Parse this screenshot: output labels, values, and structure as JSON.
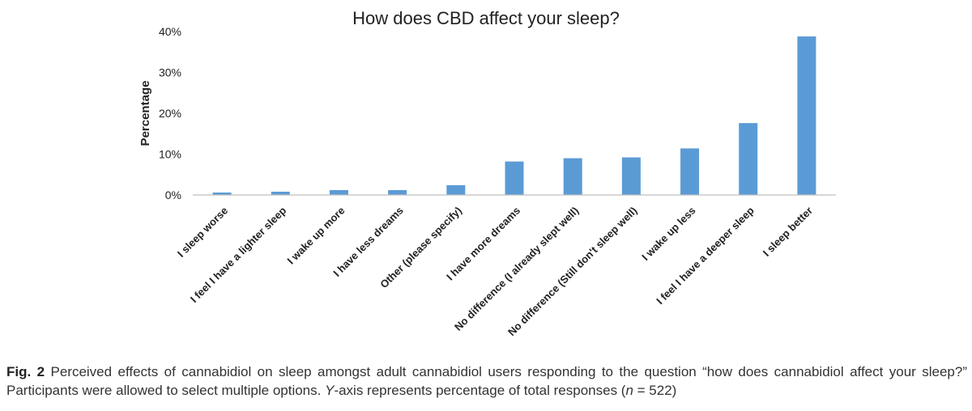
{
  "chart_data": {
    "type": "bar",
    "title": "How does CBD affect your sleep?",
    "xlabel": "",
    "ylabel": "Percentage",
    "ylim": [
      0,
      40
    ],
    "yticks": [
      "0%",
      "10%",
      "20%",
      "30%",
      "40%"
    ],
    "ytick_values": [
      0,
      10,
      20,
      30,
      40
    ],
    "grid": false,
    "bar_color": "#5b9bd5",
    "categories": [
      "I sleep worse",
      "I feel I have a lighter sleep",
      "I wake up more",
      "I have less dreams",
      "Other (please specify)",
      "I have more dreams",
      "No difference (I already slept well)",
      "No difference (Still don't sleep well)",
      "I wake up less",
      "I feel I have a deeper sleep",
      "I sleep better"
    ],
    "values": [
      0.6,
      0.8,
      1.2,
      1.2,
      2.4,
      8.2,
      9.0,
      9.2,
      11.4,
      17.6,
      38.8
    ]
  },
  "caption": {
    "fig_label": "Fig. 2",
    "text_1": " Perceived effects of cannabidiol on sleep amongst adult cannabidiol users responding to the question “how does cannabidiol affect your sleep?” Participants were allowed to select multiple options. ",
    "y_axis_italic": "Y",
    "text_2": "-axis represents percentage of total responses (",
    "n_italic": "n",
    "text_3": " = 522)"
  }
}
